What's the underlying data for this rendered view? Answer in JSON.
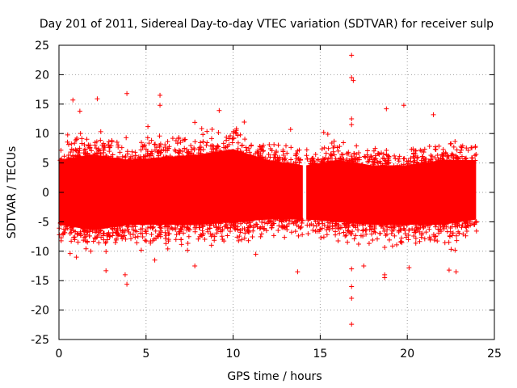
{
  "chart_data": {
    "type": "scatter",
    "title": "Day 201 of 2011, Sidereal Day-to-day VTEC variation (SDTVAR) for receiver sulp",
    "xlabel": "GPS time / hours",
    "ylabel": "SDTVAR / TECUs",
    "xlim": [
      0,
      25
    ],
    "ylim": [
      -25,
      25
    ],
    "x_ticks": [
      0,
      5,
      10,
      15,
      20,
      25
    ],
    "y_ticks": [
      -25,
      -20,
      -15,
      -10,
      -5,
      0,
      5,
      10,
      15,
      20,
      25
    ],
    "x_tick_labels": [
      "0",
      "5",
      "10",
      "15",
      "20",
      "25"
    ],
    "y_tick_labels": [
      "-25",
      "-20",
      "-15",
      "-10",
      "-5",
      "0",
      "5",
      "10",
      "15",
      "20",
      "25"
    ],
    "grid": true,
    "marker": "+",
    "color": "#ff0000",
    "gap": [
      14.0,
      14.2
    ],
    "envelope": [
      {
        "x": 0.0,
        "lo": -6,
        "hi": 6
      },
      {
        "x": 2.0,
        "lo": -7,
        "hi": 7
      },
      {
        "x": 4.0,
        "lo": -6,
        "hi": 6
      },
      {
        "x": 6.0,
        "lo": -6,
        "hi": 6.5
      },
      {
        "x": 8.0,
        "lo": -6,
        "hi": 7
      },
      {
        "x": 10.0,
        "lo": -5.5,
        "hi": 8
      },
      {
        "x": 12.0,
        "lo": -5,
        "hi": 6
      },
      {
        "x": 14.0,
        "lo": -5,
        "hi": 5
      },
      {
        "x": 14.2,
        "lo": -5,
        "hi": 5
      },
      {
        "x": 16.0,
        "lo": -5.5,
        "hi": 6
      },
      {
        "x": 18.0,
        "lo": -6,
        "hi": 5
      },
      {
        "x": 20.0,
        "lo": -6,
        "hi": 5
      },
      {
        "x": 22.0,
        "lo": -6,
        "hi": 6
      },
      {
        "x": 24.0,
        "lo": -5,
        "hi": 6
      }
    ],
    "outliers": [
      {
        "x": 0.8,
        "y": 15.7
      },
      {
        "x": 1.2,
        "y": 13.8
      },
      {
        "x": 2.2,
        "y": 15.9
      },
      {
        "x": 3.9,
        "y": 16.8
      },
      {
        "x": 5.8,
        "y": 16.5
      },
      {
        "x": 5.8,
        "y": 14.8
      },
      {
        "x": 9.2,
        "y": 13.9
      },
      {
        "x": 7.8,
        "y": 11.9
      },
      {
        "x": 13.3,
        "y": 10.7
      },
      {
        "x": 16.8,
        "y": 23.3
      },
      {
        "x": 16.8,
        "y": 19.5
      },
      {
        "x": 16.9,
        "y": 19.0
      },
      {
        "x": 16.8,
        "y": 12.5
      },
      {
        "x": 16.8,
        "y": 11.5
      },
      {
        "x": 18.8,
        "y": 14.2
      },
      {
        "x": 19.8,
        "y": 14.8
      },
      {
        "x": 21.5,
        "y": 13.2
      },
      {
        "x": 15.2,
        "y": 10.2
      },
      {
        "x": 2.7,
        "y": -13.3
      },
      {
        "x": 3.8,
        "y": -14.0
      },
      {
        "x": 3.9,
        "y": -15.6
      },
      {
        "x": 7.8,
        "y": -12.5
      },
      {
        "x": 13.7,
        "y": -13.5
      },
      {
        "x": 16.8,
        "y": -13.0
      },
      {
        "x": 16.8,
        "y": -16.0
      },
      {
        "x": 16.8,
        "y": -18.0
      },
      {
        "x": 16.8,
        "y": -22.4
      },
      {
        "x": 18.7,
        "y": -14.5
      },
      {
        "x": 18.7,
        "y": -14.0
      },
      {
        "x": 20.1,
        "y": -12.8
      },
      {
        "x": 22.4,
        "y": -13.2
      },
      {
        "x": 22.8,
        "y": -13.5
      },
      {
        "x": 17.5,
        "y": -12.5
      },
      {
        "x": 1.0,
        "y": -11.0
      },
      {
        "x": 11.3,
        "y": -10.5
      },
      {
        "x": 5.5,
        "y": -11.5
      }
    ]
  }
}
